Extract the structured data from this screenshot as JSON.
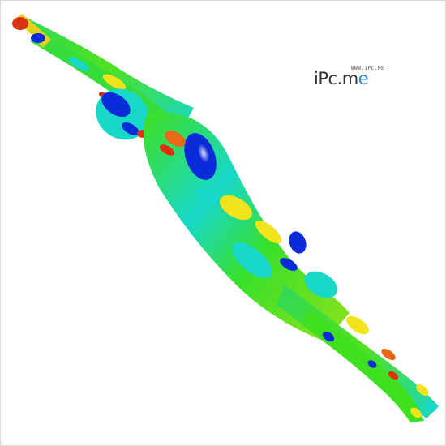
{
  "watermark": {
    "url": "WWW.IPC.ME",
    "brand_part_a": "iPc.m",
    "brand_part_b": "e",
    "brand_color": "#2a7fd4",
    "text_color": "#333333"
  },
  "palette": {
    "background": "#ffffff",
    "low": "#0a2cd8",
    "mid_low": "#00e5e8",
    "mid": "#3fe01e",
    "mid_high": "#f5e81b",
    "high": "#e03010"
  }
}
